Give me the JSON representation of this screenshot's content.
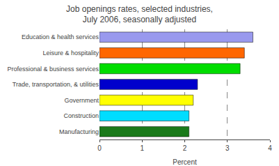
{
  "chart_data": {
    "type": "bar",
    "orientation": "horizontal",
    "title": "Job openings rates, selected industries,\nJuly 2006, seasonally adjusted",
    "categories": [
      "Manufacturing",
      "Construction",
      "Government",
      "Trade, transportation, & utilities",
      "Professional & business services",
      "Leisure & hospitality",
      "Education & health services"
    ],
    "values": [
      2.1,
      2.1,
      2.2,
      2.3,
      3.3,
      3.4,
      3.6
    ],
    "colors": [
      "#1a7a1a",
      "#00ddff",
      "#ffff00",
      "#0000cc",
      "#00dd00",
      "#ff6600",
      "#9999ee"
    ],
    "xlabel": "Percent",
    "xlim": [
      0,
      4
    ],
    "xticks": [
      0,
      1,
      2,
      3,
      4
    ],
    "grid": true
  }
}
